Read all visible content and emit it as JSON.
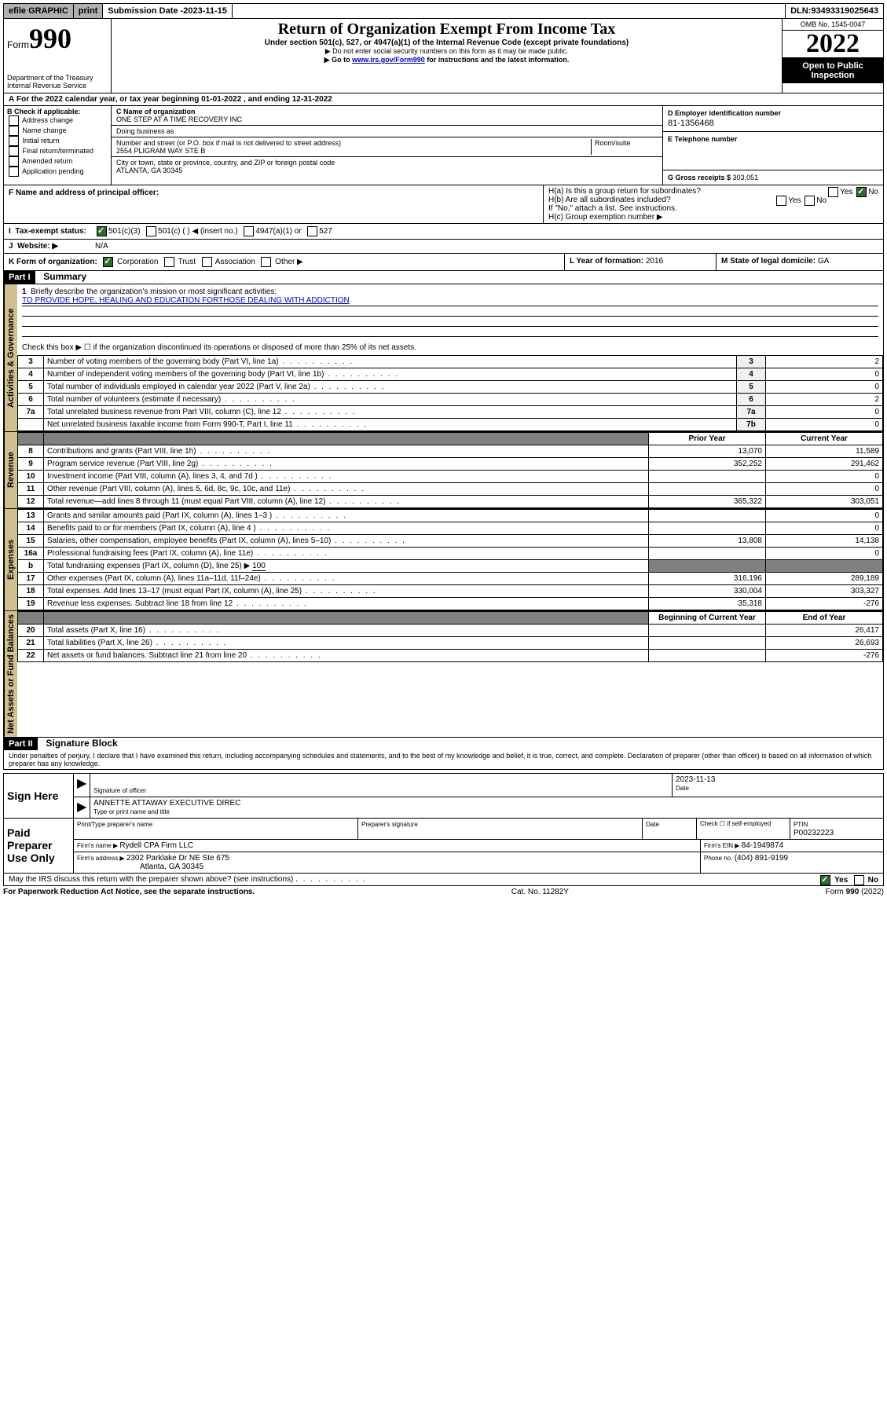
{
  "topbar": {
    "efile": "efile GRAPHIC",
    "print": "print",
    "sub_label": "Submission Date - ",
    "sub_date": "2023-11-15",
    "dln_label": "DLN: ",
    "dln": "93493319025643"
  },
  "header": {
    "form_prefix": "Form",
    "form_num": "990",
    "dept": "Department of the Treasury\nInternal Revenue Service",
    "title": "Return of Organization Exempt From Income Tax",
    "sub1": "Under section 501(c), 527, or 4947(a)(1) of the Internal Revenue Code (except private foundations)",
    "sub2": "▶ Do not enter social security numbers on this form as it may be made public.",
    "sub3_pre": "▶ Go to ",
    "sub3_link": "www.irs.gov/Form990",
    "sub3_post": " for instructions and the latest information.",
    "omb": "OMB No. 1545-0047",
    "year": "2022",
    "open": "Open to Public Inspection"
  },
  "line_a": {
    "text": "For the 2022 calendar year, or tax year beginning ",
    "begin": "01-01-2022",
    "mid": " , and ending ",
    "end": "12-31-2022"
  },
  "col_b": {
    "hdr": "B Check if applicable:",
    "items": [
      "Address change",
      "Name change",
      "Initial return",
      "Final return/terminated",
      "Amended return",
      "Application pending"
    ]
  },
  "col_c": {
    "c_label": "C Name of organization",
    "c_val": "ONE STEP AT A TIME RECOVERY INC",
    "dba_label": "Doing business as",
    "addr_label": "Number and street (or P.O. box if mail is not delivered to street address)",
    "room_label": "Room/suite",
    "addr_val": "2554 PLIGRAM WAY STE B",
    "city_label": "City or town, state or province, country, and ZIP or foreign postal code",
    "city_val": "ATLANTA, GA  30345"
  },
  "col_d": {
    "d_label": "D Employer identification number",
    "d_val": "81-1356468",
    "e_label": "E Telephone number",
    "g_label": "G Gross receipts $ ",
    "g_val": "303,051"
  },
  "f": {
    "label": "F  Name and address of principal officer:"
  },
  "h": {
    "ha": "H(a)  Is this a group return for subordinates?",
    "hb": "H(b)  Are all subordinates included?",
    "hb_note": "If \"No,\" attach a list. See instructions.",
    "hc": "H(c)  Group exemption number ▶",
    "yes": "Yes",
    "no": "No"
  },
  "i": {
    "label": "Tax-exempt status:",
    "opts": [
      "501(c)(3)",
      "501(c) (  ) ◀ (insert no.)",
      "4947(a)(1) or",
      "527"
    ]
  },
  "j": {
    "label": "Website: ▶",
    "val": "N/A"
  },
  "k": {
    "label": "K Form of organization:",
    "opts": [
      "Corporation",
      "Trust",
      "Association",
      "Other ▶"
    ]
  },
  "l": {
    "label": "L Year of formation: ",
    "val": "2016"
  },
  "m": {
    "label": "M State of legal domicile: ",
    "val": "GA"
  },
  "part1": {
    "num": "Part I",
    "title": "Summary"
  },
  "summary": {
    "q1": "Briefly describe the organization's mission or most significant activities:",
    "q1_val": "TO PROVIDE HOPE, HEALING AND EDUCATION FORTHOSE DEALING WITH ADDICTION",
    "q2": "Check this box ▶ ☐  if the organization discontinued its operations or disposed of more than 25% of its net assets.",
    "rows_gov": [
      {
        "n": "3",
        "t": "Number of voting members of the governing body (Part VI, line 1a)",
        "b": "3",
        "v": "2"
      },
      {
        "n": "4",
        "t": "Number of independent voting members of the governing body (Part VI, line 1b)",
        "b": "4",
        "v": "0"
      },
      {
        "n": "5",
        "t": "Total number of individuals employed in calendar year 2022 (Part V, line 2a)",
        "b": "5",
        "v": "0"
      },
      {
        "n": "6",
        "t": "Total number of volunteers (estimate if necessary)",
        "b": "6",
        "v": "2"
      },
      {
        "n": "7a",
        "t": "Total unrelated business revenue from Part VIII, column (C), line 12",
        "b": "7a",
        "v": "0"
      },
      {
        "n": "",
        "t": "Net unrelated business taxable income from Form 990-T, Part I, line 11",
        "b": "7b",
        "v": "0"
      }
    ],
    "col_prior": "Prior Year",
    "col_curr": "Current Year",
    "rows_rev": [
      {
        "n": "8",
        "t": "Contributions and grants (Part VIII, line 1h)",
        "p": "13,070",
        "c": "11,589"
      },
      {
        "n": "9",
        "t": "Program service revenue (Part VIII, line 2g)",
        "p": "352,252",
        "c": "291,462"
      },
      {
        "n": "10",
        "t": "Investment income (Part VIII, column (A), lines 3, 4, and 7d )",
        "p": "",
        "c": "0"
      },
      {
        "n": "11",
        "t": "Other revenue (Part VIII, column (A), lines 5, 6d, 8c, 9c, 10c, and 11e)",
        "p": "",
        "c": "0"
      },
      {
        "n": "12",
        "t": "Total revenue—add lines 8 through 11 (must equal Part VIII, column (A), line 12)",
        "p": "365,322",
        "c": "303,051"
      }
    ],
    "rows_exp": [
      {
        "n": "13",
        "t": "Grants and similar amounts paid (Part IX, column (A), lines 1–3 )",
        "p": "",
        "c": "0"
      },
      {
        "n": "14",
        "t": "Benefits paid to or for members (Part IX, column (A), line 4 )",
        "p": "",
        "c": "0"
      },
      {
        "n": "15",
        "t": "Salaries, other compensation, employee benefits (Part IX, column (A), lines 5–10)",
        "p": "13,808",
        "c": "14,138"
      },
      {
        "n": "16a",
        "t": "Professional fundraising fees (Part IX, column (A), line 11e)",
        "p": "",
        "c": "0"
      }
    ],
    "row_16b": {
      "n": "b",
      "t": "Total fundraising expenses (Part IX, column (D), line 25) ▶",
      "v": "100"
    },
    "rows_exp2": [
      {
        "n": "17",
        "t": "Other expenses (Part IX, column (A), lines 11a–11d, 11f–24e)",
        "p": "316,196",
        "c": "289,189"
      },
      {
        "n": "18",
        "t": "Total expenses. Add lines 13–17 (must equal Part IX, column (A), line 25)",
        "p": "330,004",
        "c": "303,327"
      },
      {
        "n": "19",
        "t": "Revenue less expenses. Subtract line 18 from line 12",
        "p": "35,318",
        "c": "-276"
      }
    ],
    "col_beg": "Beginning of Current Year",
    "col_end": "End of Year",
    "rows_net": [
      {
        "n": "20",
        "t": "Total assets (Part X, line 16)",
        "p": "",
        "c": "26,417"
      },
      {
        "n": "21",
        "t": "Total liabilities (Part X, line 26)",
        "p": "",
        "c": "26,693"
      },
      {
        "n": "22",
        "t": "Net assets or fund balances. Subtract line 21 from line 20",
        "p": "",
        "c": "-276"
      }
    ]
  },
  "tabs": {
    "gov": "Activities & Governance",
    "rev": "Revenue",
    "exp": "Expenses",
    "net": "Net Assets or Fund Balances"
  },
  "part2": {
    "num": "Part II",
    "title": "Signature Block"
  },
  "sig": {
    "penalty": "Under penalties of perjury, I declare that I have examined this return, including accompanying schedules and statements, and to the best of my knowledge and belief, it is true, correct, and complete. Declaration of preparer (other than officer) is based on all information of which preparer has any knowledge.",
    "sign_here": "Sign Here",
    "sig_officer": "Signature of officer",
    "date_label": "Date",
    "sig_date": "2023-11-13",
    "name_title": "ANNETTE ATTAWAY  EXECUTIVE DIREC",
    "type_label": "Type or print name and title",
    "paid": "Paid Preparer Use Only",
    "prep_name_lbl": "Print/Type preparer's name",
    "prep_sig_lbl": "Preparer's signature",
    "check_if": "Check ☐ if self-employed",
    "ptin_lbl": "PTIN",
    "ptin": "P00232223",
    "firm_name_lbl": "Firm's name    ▶ ",
    "firm_name": "Rydell CPA Firm LLC",
    "firm_ein_lbl": "Firm's EIN ▶ ",
    "firm_ein": "84-1949874",
    "firm_addr_lbl": "Firm's address ▶ ",
    "firm_addr1": "2302 Parklake Dr NE Ste 675",
    "firm_addr2": "Atlanta, GA  30345",
    "phone_lbl": "Phone no. ",
    "phone": "(404) 891-9199",
    "discuss": "May the IRS discuss this return with the preparer shown above? (see instructions)"
  },
  "footer": {
    "left": "For Paperwork Reduction Act Notice, see the separate instructions.",
    "mid": "Cat. No. 11282Y",
    "right": "Form 990 (2022)"
  }
}
